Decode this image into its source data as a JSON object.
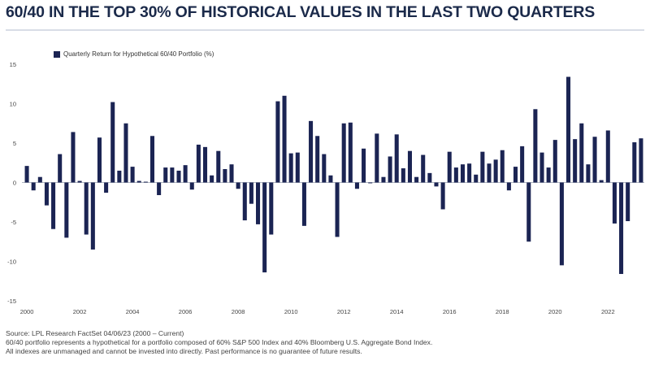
{
  "title": "60/40 IN THE TOP 30% OF HISTORICAL VALUES IN THE LAST TWO QUARTERS",
  "footer": {
    "source": "Source: LPL Research FactSet 04/06/23 (2000 – Current)",
    "note1": "60/40 portfolio represents a hypothetical for a portfolio composed of 60% S&P 500 Index and 40% Bloomberg U.S. Aggregate Bond Index.",
    "note2": "All indexes are unmanaged and cannot be invested into directly. Past performance is no guarantee of future results."
  },
  "colors": {
    "bar": "#1b2453",
    "axis": "#b0b6c2",
    "title": "#1b2a4a"
  },
  "chart_data": {
    "type": "bar",
    "legend": [
      "Quarterly Return for Hypothetical 60/40 Portfolio (%)"
    ],
    "legend_position": "top-left",
    "grid": false,
    "ylim": [
      -15,
      15
    ],
    "yticks": [
      -15,
      -10,
      -5,
      0,
      5,
      10,
      15
    ],
    "xtick_labels": [
      "2000",
      "2002",
      "2004",
      "2006",
      "2008",
      "2010",
      "2012",
      "2014",
      "2016",
      "2018",
      "2020",
      "2022"
    ],
    "start_period": "2000 Q1",
    "series": [
      {
        "name": "Quarterly Return for Hypothetical 60/40 Portfolio (%)",
        "values": [
          2.1,
          -1.0,
          0.7,
          -2.9,
          -5.9,
          3.6,
          -7.0,
          6.4,
          0.2,
          -6.6,
          -8.5,
          5.7,
          -1.3,
          10.2,
          1.5,
          7.5,
          2.0,
          0.2,
          0.1,
          5.9,
          -1.6,
          1.9,
          1.9,
          1.5,
          2.2,
          -0.9,
          4.8,
          4.5,
          0.9,
          4.0,
          1.7,
          2.3,
          -0.8,
          -4.8,
          -2.7,
          -5.3,
          -11.4,
          -6.6,
          10.3,
          11.0,
          3.7,
          3.8,
          -5.5,
          7.8,
          5.9,
          3.6,
          0.9,
          -6.9,
          7.5,
          7.6,
          -0.8,
          4.3,
          -0.1,
          6.2,
          0.7,
          3.3,
          6.1,
          1.8,
          4.0,
          0.7,
          3.5,
          1.2,
          -0.5,
          -3.4,
          3.9,
          1.9,
          2.3,
          2.4,
          1.0,
          3.9,
          2.4,
          2.9,
          4.1,
          -1.0,
          2.0,
          4.6,
          -7.5,
          9.3,
          3.8,
          1.9,
          5.4,
          -10.5,
          13.4,
          5.5,
          7.5,
          2.3,
          5.8,
          0.3,
          6.6,
          -5.2,
          -11.6,
          -4.9,
          5.1,
          5.6
        ]
      }
    ]
  }
}
